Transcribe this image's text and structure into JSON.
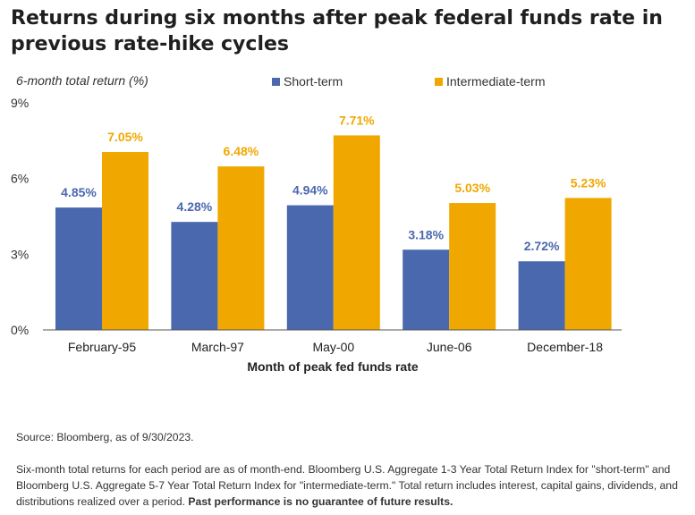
{
  "title": "Returns during six months after peak federal funds rate in previous rate-hike cycles",
  "chart_data": {
    "type": "bar",
    "title": "Returns during six months after peak federal funds rate in previous rate-hike cycles",
    "ylabel": "6-month total return (%)",
    "xlabel": "Month of peak fed funds rate",
    "categories": [
      "February-95",
      "March-97",
      "May-00",
      "June-06",
      "December-18"
    ],
    "series": [
      {
        "name": "Short-term",
        "color": "#4a68ad",
        "values": [
          4.85,
          4.28,
          4.94,
          3.18,
          2.72
        ],
        "labels": [
          "4.85%",
          "4.28%",
          "4.94%",
          "3.18%",
          "2.72%"
        ]
      },
      {
        "name": "Intermediate-term",
        "color": "#f0a800",
        "values": [
          7.05,
          6.48,
          7.71,
          5.03,
          5.23
        ],
        "labels": [
          "7.05%",
          "6.48%",
          "7.71%",
          "5.03%",
          "5.23%"
        ]
      }
    ],
    "ylim": [
      0,
      9
    ],
    "yticks": [
      0,
      3,
      6,
      9
    ],
    "ytick_labels": [
      "0%",
      "3%",
      "6%",
      "9%"
    ],
    "grid": false,
    "legend": "top"
  },
  "notes": {
    "source": "Source: Bloomberg, as of 9/30/2023.",
    "footnote": "Six-month total returns for each period are as of month-end. Bloomberg U.S. Aggregate 1-3 Year Total Return Index for \"short-term\" and Bloomberg U.S. Aggregate 5-7 Year Total Return Index for \"intermediate-term.\" Total return includes interest, capital gains, dividends, and distributions realized over a period.",
    "footnote_bold": "Past performance is no guarantee of future results."
  }
}
